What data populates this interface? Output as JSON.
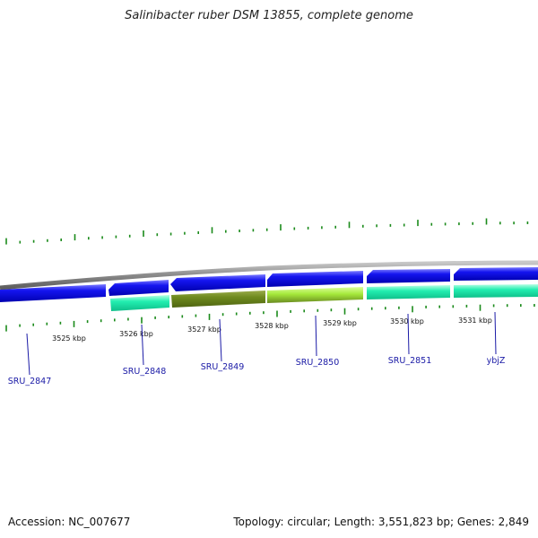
{
  "title": "Salinibacter ruber DSM 13855, complete genome",
  "footer": {
    "accession": "Accession: NC_007677",
    "summary": "Topology: circular; Length: 3,551,823 bp; Genes: 2,849"
  },
  "colors": {
    "backbone": "#8a8a8a",
    "gene_blue": "#0a0ae6",
    "cds_cyan": "#1ee8a8",
    "cds_olive": "#6e8a1e",
    "cds_lime": "#a4e83a",
    "tick_green": "#1a8a1a",
    "label_blue": "#1a1aa6"
  },
  "kbp_labels": [
    "3525 kbp",
    "3526 kbp",
    "3527 kbp",
    "3528 kbp",
    "3529 kbp",
    "3530 kbp",
    "3531 kbp"
  ],
  "gene_labels": [
    "SRU_2847",
    "SRU_2848",
    "SRU_2849",
    "SRU_2850",
    "SRU_2851",
    "ybjZ"
  ]
}
